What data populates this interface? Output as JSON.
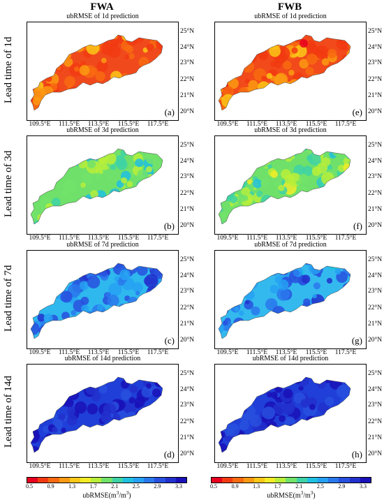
{
  "columns": [
    "FWA",
    "FWB"
  ],
  "rows": [
    "Lead time of 1d",
    "Lead time of 3d",
    "Lead time of 7d",
    "Lead time of 14d"
  ],
  "panels": [
    {
      "title": "ubRMSE of 1d prediction",
      "letter": "(a)",
      "level": 0.18,
      "dominant": "#f04a1c"
    },
    {
      "title": "ubRMSE of 3d prediction",
      "letter": "(b)",
      "level": 0.52,
      "dominant": "#6fe06a"
    },
    {
      "title": "ubRMSE of 7d prediction",
      "letter": "(c)",
      "level": 0.78,
      "dominant": "#2fb8ee"
    },
    {
      "title": "ubRMSE of 14d prediction",
      "letter": "(d)",
      "level": 0.93,
      "dominant": "#1f3fd8"
    },
    {
      "title": "ubRMSE of 1d prediction",
      "letter": "(e)",
      "level": 0.17,
      "dominant": "#f24a1a"
    },
    {
      "title": "ubRMSE of 3d prediction",
      "letter": "(f)",
      "level": 0.5,
      "dominant": "#6fe06a"
    },
    {
      "title": "ubRMSE of 7d prediction",
      "letter": "(g)",
      "level": 0.77,
      "dominant": "#33b9ee"
    },
    {
      "title": "ubRMSE of 14d prediction",
      "letter": "(h)",
      "level": 0.93,
      "dominant": "#1f3fd8"
    }
  ],
  "lat_labels": [
    "25°N",
    "24°N",
    "23°N",
    "22°N",
    "21°N",
    "20°N"
  ],
  "lon_labels": [
    "109.5°E",
    "111.5°E",
    "113.5°E",
    "115.5°E",
    "117.5°E"
  ],
  "colorbar": {
    "ticks": [
      "0.5",
      "0.9",
      "1.3",
      "1.7",
      "2.1",
      "2.5",
      "2.9",
      "3.3"
    ],
    "title_prefix": "ubRMSE(m",
    "title_sup1": "3",
    "title_mid": "/m",
    "title_sup2": "3",
    "title_suffix": ")",
    "colors": [
      "#e8001e",
      "#f23a12",
      "#f86a10",
      "#fb9a12",
      "#fcc818",
      "#f2ec26",
      "#b8ee3a",
      "#72e26a",
      "#3ed2a6",
      "#20c0e0",
      "#26a0f2",
      "#2a78ec",
      "#2850de",
      "#2230cc",
      "#1a10b8"
    ]
  }
}
